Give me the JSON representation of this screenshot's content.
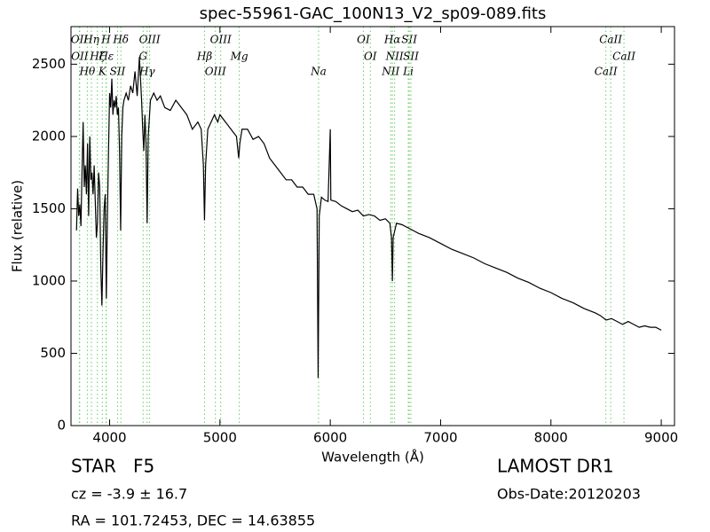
{
  "chart_data": {
    "type": "line",
    "title": "spec-55961-GAC_100N13_V2_sp09-089.fits",
    "xlabel": "Wavelength (Å)",
    "ylabel": "Flux (relative)",
    "color": "#000000",
    "line_color": "#66cc66",
    "xlim": [
      3650,
      9120
    ],
    "ylim": [
      0,
      2760
    ],
    "xticks": [
      4000,
      5000,
      6000,
      7000,
      8000,
      9000
    ],
    "yticks": [
      0,
      500,
      1000,
      1500,
      2000,
      2500
    ],
    "x": [
      3700,
      3710,
      3720,
      3730,
      3740,
      3750,
      3760,
      3770,
      3780,
      3790,
      3800,
      3810,
      3820,
      3830,
      3840,
      3850,
      3860,
      3870,
      3880,
      3890,
      3900,
      3910,
      3920,
      3930,
      3940,
      3950,
      3960,
      3970,
      3980,
      3990,
      4000,
      4010,
      4020,
      4030,
      4040,
      4050,
      4060,
      4070,
      4080,
      4090,
      4100,
      4110,
      4120,
      4130,
      4150,
      4170,
      4190,
      4210,
      4230,
      4250,
      4270,
      4290,
      4300,
      4310,
      4320,
      4330,
      4340,
      4350,
      4370,
      4400,
      4430,
      4460,
      4500,
      4550,
      4600,
      4650,
      4700,
      4750,
      4800,
      4830,
      4850,
      4860,
      4870,
      4890,
      4920,
      4950,
      4980,
      5000,
      5050,
      5100,
      5150,
      5170,
      5180,
      5200,
      5250,
      5300,
      5350,
      5400,
      5450,
      5500,
      5550,
      5600,
      5650,
      5700,
      5750,
      5800,
      5850,
      5880,
      5890,
      5900,
      5920,
      5950,
      5980,
      6000,
      6005,
      6050,
      6100,
      6150,
      6200,
      6250,
      6300,
      6350,
      6400,
      6450,
      6500,
      6540,
      6555,
      6563,
      6570,
      6600,
      6650,
      6700,
      6750,
      6800,
      6900,
      7000,
      7100,
      7200,
      7300,
      7400,
      7500,
      7600,
      7700,
      7800,
      7900,
      8000,
      8100,
      8200,
      8300,
      8400,
      8450,
      8500,
      8550,
      8600,
      8650,
      8700,
      8750,
      8800,
      8850,
      8900,
      8950,
      9000
    ],
    "values": [
      1350,
      1640,
      1450,
      1530,
      1380,
      1750,
      2100,
      1650,
      1800,
      1600,
      1950,
      1450,
      2000,
      1700,
      1750,
      1600,
      1800,
      1550,
      1300,
      1400,
      1750,
      1650,
      1100,
      830,
      1200,
      1500,
      1600,
      880,
      1450,
      1900,
      2300,
      2200,
      2400,
      2150,
      2250,
      2200,
      2280,
      2150,
      2200,
      1900,
      1350,
      2000,
      2200,
      2250,
      2300,
      2250,
      2350,
      2300,
      2450,
      2280,
      2550,
      2250,
      2050,
      1900,
      2150,
      1950,
      1400,
      2000,
      2250,
      2300,
      2250,
      2280,
      2200,
      2180,
      2250,
      2200,
      2150,
      2050,
      2100,
      2050,
      1800,
      1420,
      1800,
      2050,
      2100,
      2150,
      2100,
      2150,
      2100,
      2050,
      2000,
      1850,
      1950,
      2050,
      2050,
      1980,
      2000,
      1950,
      1850,
      1800,
      1750,
      1700,
      1700,
      1650,
      1650,
      1600,
      1600,
      1500,
      330,
      1450,
      1580,
      1560,
      1550,
      2050,
      1560,
      1550,
      1520,
      1500,
      1480,
      1490,
      1450,
      1460,
      1450,
      1420,
      1430,
      1400,
      1300,
      1000,
      1300,
      1400,
      1390,
      1370,
      1350,
      1330,
      1300,
      1260,
      1220,
      1190,
      1160,
      1120,
      1090,
      1060,
      1020,
      990,
      950,
      920,
      880,
      850,
      810,
      780,
      760,
      730,
      740,
      720,
      700,
      720,
      700,
      680,
      690,
      680,
      680,
      660
    ],
    "spectral_lines": [
      {
        "label": "OII",
        "x": 3726
      },
      {
        "label": "OII",
        "x": 3729
      },
      {
        "label": "Hθ",
        "x": 3798
      },
      {
        "label": "Hη",
        "x": 3835
      },
      {
        "label": "Hζ",
        "x": 3889
      },
      {
        "label": "K",
        "x": 3934
      },
      {
        "label": "H",
        "x": 3968
      },
      {
        "label": "Hε",
        "x": 3970
      },
      {
        "label": "SII",
        "x": 4072
      },
      {
        "label": "Hδ",
        "x": 4102
      },
      {
        "label": "G",
        "x": 4304
      },
      {
        "label": "Hγ",
        "x": 4340
      },
      {
        "label": "OIII",
        "x": 4363
      },
      {
        "label": "Hβ",
        "x": 4861
      },
      {
        "label": "OIII",
        "x": 4959
      },
      {
        "label": "OIII",
        "x": 5007
      },
      {
        "label": "Mg",
        "x": 5175
      },
      {
        "label": "Na",
        "x": 5894
      },
      {
        "label": "OI",
        "x": 6300
      },
      {
        "label": "OI",
        "x": 6363
      },
      {
        "label": "NII",
        "x": 6548
      },
      {
        "label": "Hα",
        "x": 6563
      },
      {
        "label": "NII",
        "x": 6583
      },
      {
        "label": "Li",
        "x": 6707
      },
      {
        "label": "SII",
        "x": 6716
      },
      {
        "label": "SII",
        "x": 6731
      },
      {
        "label": "CaII",
        "x": 8498
      },
      {
        "label": "CaII",
        "x": 8542
      },
      {
        "label": "CaII",
        "x": 8662
      }
    ],
    "info": {
      "class": "STAR   F5",
      "survey": "LAMOST DR1",
      "cz": "cz = -3.9 ± 16.7",
      "obs_date": "Obs-Date:20120203",
      "coords": "RA = 101.72453, DEC = 14.63855"
    }
  }
}
